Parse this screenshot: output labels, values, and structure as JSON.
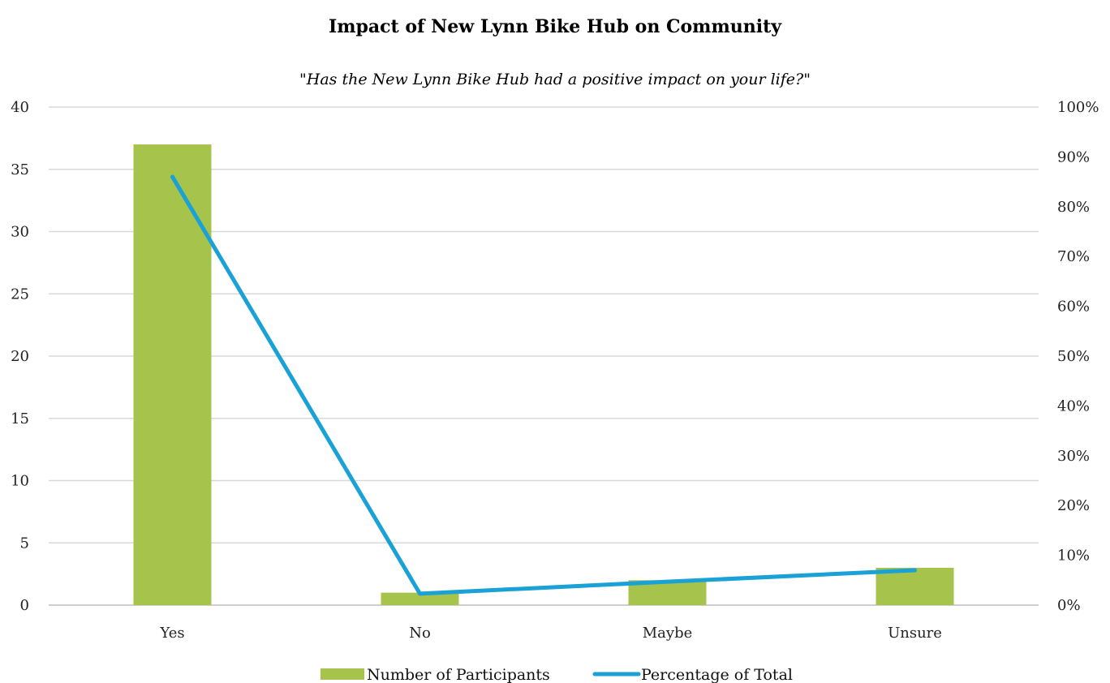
{
  "chart_data": {
    "type": "bar",
    "title": "Impact of New Lynn Bike Hub on Community",
    "subtitle": "\"Has the New Lynn Bike Hub had a positive impact on your life?\"",
    "categories": [
      "Yes",
      "No",
      "Maybe",
      "Unsure"
    ],
    "series": [
      {
        "name": "Number of Participants",
        "type": "bar",
        "axis": "left",
        "color": "#a6c34c",
        "values": [
          37,
          1,
          2,
          3
        ]
      },
      {
        "name": "Percentage of Total",
        "type": "line",
        "axis": "right",
        "color": "#1aa1d6",
        "values": [
          0.86,
          0.023,
          0.047,
          0.07
        ]
      }
    ],
    "y_left": {
      "ylim": [
        0,
        40
      ],
      "ticks": [
        0,
        5,
        10,
        15,
        20,
        25,
        30,
        35,
        40
      ],
      "tick_labels": [
        "0",
        "5",
        "10",
        "15",
        "20",
        "25",
        "30",
        "35",
        "40"
      ]
    },
    "y_right": {
      "ylim": [
        0,
        1
      ],
      "ticks": [
        0,
        0.1,
        0.2,
        0.3,
        0.4,
        0.5,
        0.6,
        0.7,
        0.8,
        0.9,
        1.0
      ],
      "tick_labels": [
        "0%",
        "10%",
        "20%",
        "30%",
        "40%",
        "50%",
        "60%",
        "70%",
        "80%",
        "90%",
        "100%"
      ]
    },
    "grid": true,
    "legend_position": "bottom"
  }
}
